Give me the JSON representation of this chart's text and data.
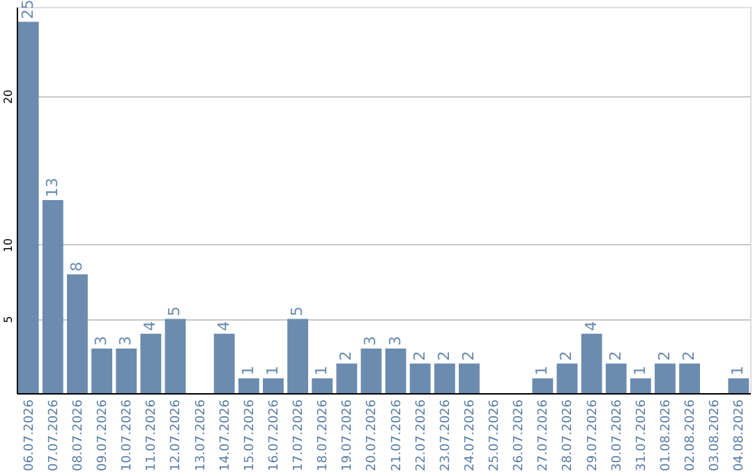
{
  "chart_data": {
    "type": "bar",
    "categories": [
      "06.07.2026",
      "07.07.2026",
      "08.07.2026",
      "09.07.2026",
      "10.07.2026",
      "11.07.2026",
      "12.07.2026",
      "13.07.2026",
      "14.07.2026",
      "15.07.2026",
      "16.07.2026",
      "17.07.2026",
      "18.07.2026",
      "19.07.2026",
      "20.07.2026",
      "21.07.2026",
      "22.07.2026",
      "23.07.2026",
      "24.07.2026",
      "25.07.2026",
      "26.07.2026",
      "27.07.2026",
      "28.07.2026",
      "29.07.2026",
      "30.07.2026",
      "31.07.2026",
      "01.08.2026",
      "02.08.2026",
      "03.08.2026",
      "04.08.2026"
    ],
    "values": [
      25,
      13,
      8,
      3,
      3,
      4,
      5,
      null,
      4,
      1,
      1,
      5,
      1,
      2,
      3,
      3,
      2,
      2,
      2,
      null,
      null,
      1,
      2,
      4,
      2,
      1,
      2,
      2,
      null,
      1
    ],
    "color": "#6b8cae",
    "ylim": [
      0,
      26
    ],
    "yticks": [
      5,
      10,
      20
    ],
    "grid": "y",
    "data_labels": true
  }
}
